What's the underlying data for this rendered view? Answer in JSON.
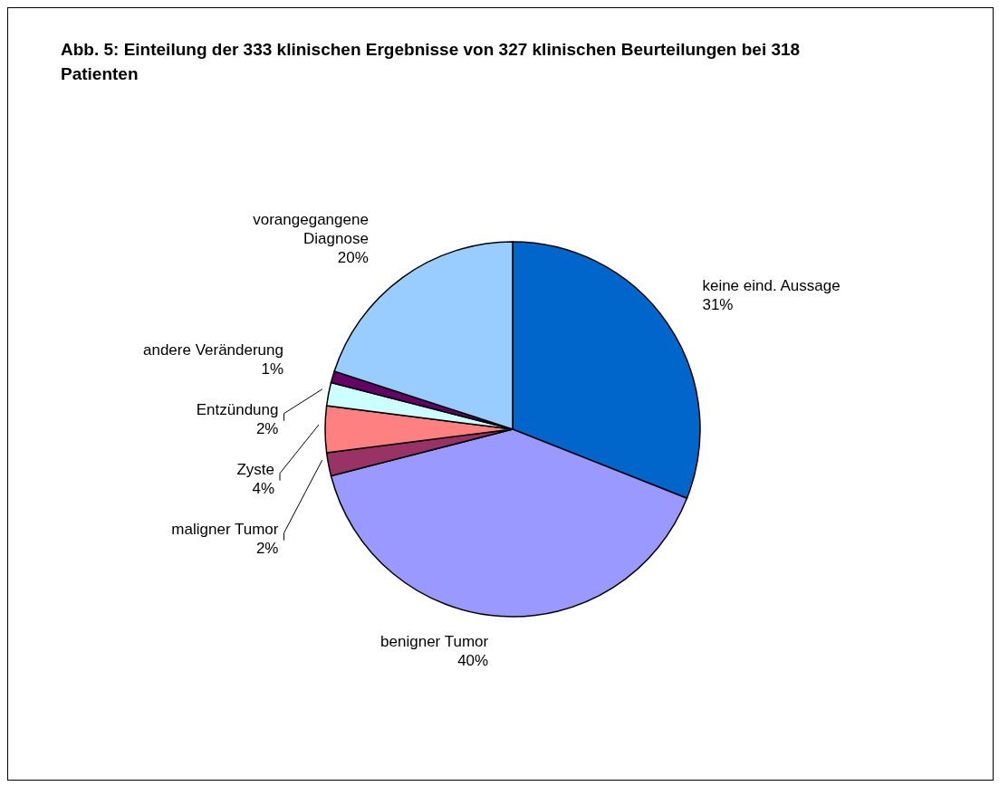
{
  "chart_data": {
    "type": "pie",
    "title": "Abb. 5: Einteilung der 333 klinischen Ergebnisse von 327 klinischen Beurteilungen bei 318 Patienten",
    "categories": [
      "keine eind. Aussage",
      "benigner Tumor",
      "maligner Tumor",
      "Zyste",
      "Entzündung",
      "andere Veränderung",
      "vorangegangene Diagnose"
    ],
    "values": [
      31,
      40,
      2,
      4,
      2,
      1,
      20
    ],
    "value_labels": [
      "31%",
      "40%",
      "2%",
      "4%",
      "2%",
      "1%",
      "20%"
    ],
    "colors": [
      "#0066cc",
      "#9999ff",
      "#993366",
      "#ff8080",
      "#ccffff",
      "#660066",
      "#99ccff"
    ],
    "legend": false
  }
}
